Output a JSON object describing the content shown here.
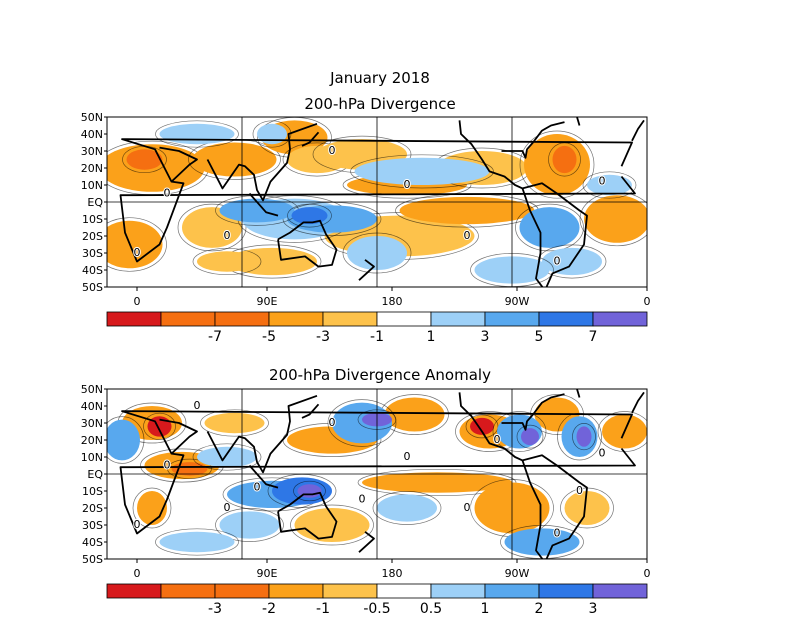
{
  "figure": {
    "title": "January 2018"
  },
  "colors": {
    "neg4": "#d7191c",
    "neg3": "#f56f11",
    "neg2": "#fba11a",
    "neg1": "#fdc24b",
    "zero": "#ffffff",
    "pos1": "#9dd0f7",
    "pos2": "#58a8ee",
    "pos3": "#2e77e6",
    "pos4": "#7163d9",
    "land": "#000000"
  },
  "chart_data": [
    {
      "type": "heatmap",
      "title": "200-hPa Divergence",
      "x_tick_labels": [
        "0",
        "90E",
        "180",
        "90W",
        "0"
      ],
      "y_tick_labels": [
        "50N",
        "40N",
        "30N",
        "20N",
        "10N",
        "EQ",
        "10S",
        "20S",
        "30S",
        "40S",
        "50S"
      ],
      "xlim": [
        0,
        360
      ],
      "ylim": [
        -50,
        50
      ],
      "colorbar_labels": [
        "-7",
        "-5",
        "-3",
        "-1",
        "1",
        "3",
        "5",
        "7"
      ],
      "colorbar_bins": [
        "neg4",
        "neg3",
        "neg3",
        "neg2",
        "neg1",
        "zero",
        "pos1",
        "pos2",
        "pos3",
        "pos4"
      ],
      "contour_labels": [
        "0",
        "0",
        "0",
        "0",
        "0",
        "0",
        "0",
        "0"
      ],
      "features": [
        {
          "lon": 30,
          "lat": 20,
          "rx": 35,
          "ry": 14,
          "level": -2
        },
        {
          "lon": 25,
          "lat": 25,
          "rx": 12,
          "ry": 6,
          "level": -3
        },
        {
          "lon": 15,
          "lat": -25,
          "rx": 22,
          "ry": 14,
          "level": -2
        },
        {
          "lon": 70,
          "lat": -15,
          "rx": 20,
          "ry": 12,
          "level": -1
        },
        {
          "lon": 85,
          "lat": 25,
          "rx": 28,
          "ry": 10,
          "level": -2
        },
        {
          "lon": 125,
          "lat": 38,
          "rx": 22,
          "ry": 10,
          "level": -2
        },
        {
          "lon": 140,
          "lat": 25,
          "rx": 20,
          "ry": 8,
          "level": -1
        },
        {
          "lon": 170,
          "lat": 28,
          "rx": 30,
          "ry": 9,
          "level": -1
        },
        {
          "lon": 200,
          "lat": 10,
          "rx": 40,
          "ry": 6,
          "level": -2
        },
        {
          "lon": 250,
          "lat": 20,
          "rx": 30,
          "ry": 10,
          "level": -1
        },
        {
          "lon": 300,
          "lat": 22,
          "rx": 22,
          "ry": 18,
          "level": -2
        },
        {
          "lon": 305,
          "lat": 25,
          "rx": 8,
          "ry": 8,
          "level": -3
        },
        {
          "lon": 195,
          "lat": -20,
          "rx": 50,
          "ry": 12,
          "level": -1
        },
        {
          "lon": 240,
          "lat": -5,
          "rx": 45,
          "ry": 8,
          "level": -2
        },
        {
          "lon": 110,
          "lat": -35,
          "rx": 30,
          "ry": 8,
          "level": -1
        },
        {
          "lon": 340,
          "lat": -10,
          "rx": 22,
          "ry": 14,
          "level": -2
        },
        {
          "lon": 80,
          "lat": -35,
          "rx": 20,
          "ry": 6,
          "level": -1
        },
        {
          "lon": 125,
          "lat": -10,
          "rx": 35,
          "ry": 12,
          "level": 1
        },
        {
          "lon": 150,
          "lat": -10,
          "rx": 30,
          "ry": 8,
          "level": 2
        },
        {
          "lon": 100,
          "lat": -5,
          "rx": 25,
          "ry": 7,
          "level": 2
        },
        {
          "lon": 135,
          "lat": -8,
          "rx": 12,
          "ry": 5,
          "level": 3
        },
        {
          "lon": 180,
          "lat": -30,
          "rx": 20,
          "ry": 10,
          "level": 1
        },
        {
          "lon": 210,
          "lat": 18,
          "rx": 45,
          "ry": 8,
          "level": 1
        },
        {
          "lon": 60,
          "lat": 40,
          "rx": 25,
          "ry": 6,
          "level": 1
        },
        {
          "lon": 110,
          "lat": 40,
          "rx": 10,
          "ry": 6,
          "level": 1
        },
        {
          "lon": 295,
          "lat": -15,
          "rx": 20,
          "ry": 12,
          "level": 2
        },
        {
          "lon": 310,
          "lat": -35,
          "rx": 20,
          "ry": 8,
          "level": 1
        },
        {
          "lon": 270,
          "lat": -40,
          "rx": 25,
          "ry": 8,
          "level": 1
        },
        {
          "lon": 335,
          "lat": 10,
          "rx": 15,
          "ry": 6,
          "level": 1
        }
      ]
    },
    {
      "type": "heatmap",
      "title": "200-hPa Divergence Anomaly",
      "x_tick_labels": [
        "0",
        "90E",
        "180",
        "90W",
        "0"
      ],
      "y_tick_labels": [
        "50N",
        "40N",
        "30N",
        "20N",
        "10N",
        "EQ",
        "10S",
        "20S",
        "30S",
        "40S",
        "50S"
      ],
      "xlim": [
        0,
        360
      ],
      "ylim": [
        -50,
        50
      ],
      "colorbar_labels": [
        "-3",
        "-2",
        "-1",
        "-0.5",
        "0.5",
        "1",
        "2",
        "3"
      ],
      "colorbar_bins": [
        "neg4",
        "neg3",
        "neg3",
        "neg2",
        "neg1",
        "zero",
        "pos1",
        "pos2",
        "pos3",
        "pos4"
      ],
      "contour_labels": [
        "0",
        "0",
        "0",
        "0",
        "0",
        "0",
        "0",
        "0",
        "0",
        "0",
        "0",
        "0",
        "0"
      ],
      "features": [
        {
          "lon": 30,
          "lat": 30,
          "rx": 20,
          "ry": 10,
          "level": -2
        },
        {
          "lon": 35,
          "lat": 28,
          "rx": 8,
          "ry": 6,
          "level": -4
        },
        {
          "lon": 50,
          "lat": 5,
          "rx": 25,
          "ry": 8,
          "level": -2
        },
        {
          "lon": 55,
          "lat": 3,
          "rx": 12,
          "ry": 4,
          "level": -3
        },
        {
          "lon": 30,
          "lat": -20,
          "rx": 10,
          "ry": 10,
          "level": -2
        },
        {
          "lon": 85,
          "lat": 30,
          "rx": 20,
          "ry": 6,
          "level": -1
        },
        {
          "lon": 150,
          "lat": 20,
          "rx": 30,
          "ry": 8,
          "level": -2
        },
        {
          "lon": 205,
          "lat": 35,
          "rx": 20,
          "ry": 10,
          "level": -2
        },
        {
          "lon": 220,
          "lat": -5,
          "rx": 50,
          "ry": 6,
          "level": -2
        },
        {
          "lon": 255,
          "lat": 25,
          "rx": 20,
          "ry": 10,
          "level": -2
        },
        {
          "lon": 250,
          "lat": 28,
          "rx": 8,
          "ry": 5,
          "level": -4
        },
        {
          "lon": 300,
          "lat": 35,
          "rx": 15,
          "ry": 10,
          "level": -2
        },
        {
          "lon": 345,
          "lat": 25,
          "rx": 15,
          "ry": 10,
          "level": -2
        },
        {
          "lon": 150,
          "lat": -30,
          "rx": 25,
          "ry": 10,
          "level": -1
        },
        {
          "lon": 270,
          "lat": -20,
          "rx": 25,
          "ry": 15,
          "level": -2
        },
        {
          "lon": 320,
          "lat": -20,
          "rx": 15,
          "ry": 10,
          "level": -1
        },
        {
          "lon": 10,
          "lat": 20,
          "rx": 12,
          "ry": 12,
          "level": 2
        },
        {
          "lon": 80,
          "lat": 10,
          "rx": 20,
          "ry": 6,
          "level": 1
        },
        {
          "lon": 110,
          "lat": -12,
          "rx": 30,
          "ry": 8,
          "level": 2
        },
        {
          "lon": 130,
          "lat": -10,
          "rx": 20,
          "ry": 8,
          "level": 3
        },
        {
          "lon": 135,
          "lat": -10,
          "rx": 8,
          "ry": 4,
          "level": 4
        },
        {
          "lon": 170,
          "lat": 30,
          "rx": 20,
          "ry": 12,
          "level": 2
        },
        {
          "lon": 180,
          "lat": 32,
          "rx": 10,
          "ry": 4,
          "level": 4
        },
        {
          "lon": 200,
          "lat": -20,
          "rx": 20,
          "ry": 8,
          "level": 1
        },
        {
          "lon": 275,
          "lat": 25,
          "rx": 15,
          "ry": 10,
          "level": 2
        },
        {
          "lon": 282,
          "lat": 22,
          "rx": 6,
          "ry": 5,
          "level": 4
        },
        {
          "lon": 315,
          "lat": 22,
          "rx": 12,
          "ry": 12,
          "level": 2
        },
        {
          "lon": 318,
          "lat": 22,
          "rx": 5,
          "ry": 6,
          "level": 4
        },
        {
          "lon": 290,
          "lat": -40,
          "rx": 25,
          "ry": 8,
          "level": 2
        },
        {
          "lon": 95,
          "lat": -30,
          "rx": 20,
          "ry": 8,
          "level": 1
        },
        {
          "lon": 60,
          "lat": -40,
          "rx": 25,
          "ry": 6,
          "level": 1
        }
      ]
    }
  ]
}
